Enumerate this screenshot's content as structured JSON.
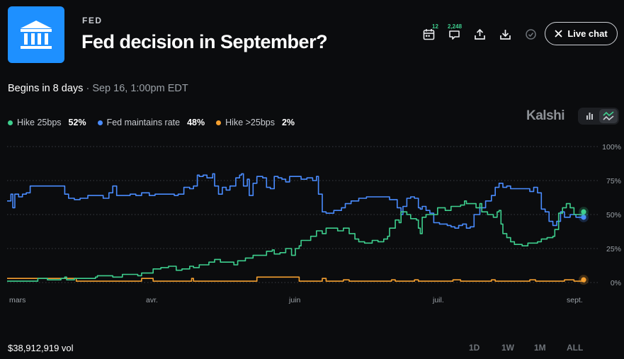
{
  "header": {
    "category": "FED",
    "title": "Fed decision in September?"
  },
  "toolbar": {
    "calendar_count": "12",
    "comments_count": "2,248",
    "live_chat_label": "Live chat"
  },
  "schedule": {
    "begins": "Begins in 8 days",
    "separator": "·",
    "datetime": "Sep 16, 1:00pm EDT"
  },
  "brand": "Kalshi",
  "footer": {
    "volume": "$38,912,919 vol",
    "range_1d": "1D",
    "range_1w": "1W",
    "range_1m": "1M",
    "range_all": "ALL"
  },
  "colors": {
    "hike25": "#3ecf8e",
    "maintain": "#4a8cff",
    "hike_gt25": "#f5a030"
  },
  "chart_data": {
    "type": "line",
    "x_ticks": [
      "mars",
      "avr.",
      "juin",
      "juil.",
      "sept."
    ],
    "y_ticks": [
      "100%",
      "75%",
      "50%",
      "25%",
      "0%"
    ],
    "ylim": [
      0,
      100
    ],
    "grid": true,
    "legend_position": "top-left",
    "series": [
      {
        "name": "Hike 25bps",
        "label": "52%",
        "color": "#3ecf8e",
        "points": [
          [
            0,
            1
          ],
          [
            15,
            1
          ],
          [
            16,
            3
          ],
          [
            20,
            3
          ],
          [
            21,
            2
          ],
          [
            26,
            2
          ],
          [
            28,
            3
          ],
          [
            30,
            4
          ],
          [
            31,
            2
          ],
          [
            35,
            3
          ],
          [
            42,
            3
          ],
          [
            46,
            4
          ],
          [
            47,
            5
          ],
          [
            54,
            5
          ],
          [
            55,
            4
          ],
          [
            58,
            4
          ],
          [
            60,
            6
          ],
          [
            66,
            6
          ],
          [
            68,
            5
          ],
          [
            70,
            7
          ],
          [
            74,
            7
          ],
          [
            76,
            10
          ],
          [
            80,
            11
          ],
          [
            84,
            12
          ],
          [
            87,
            12
          ],
          [
            88,
            9
          ],
          [
            91,
            10
          ],
          [
            95,
            12
          ],
          [
            97,
            11
          ],
          [
            100,
            13
          ],
          [
            103,
            13
          ],
          [
            105,
            15
          ],
          [
            108,
            17
          ],
          [
            111,
            15
          ],
          [
            116,
            15
          ],
          [
            118,
            13
          ],
          [
            120,
            16
          ],
          [
            124,
            18
          ],
          [
            128,
            20
          ],
          [
            132,
            20
          ],
          [
            135,
            23
          ],
          [
            138,
            24
          ],
          [
            139,
            21
          ],
          [
            142,
            22
          ],
          [
            145,
            25
          ],
          [
            147,
            25
          ],
          [
            148,
            20
          ],
          [
            150,
            25
          ],
          [
            152,
            27
          ],
          [
            153,
            31
          ],
          [
            156,
            31
          ],
          [
            158,
            34
          ],
          [
            160,
            34
          ],
          [
            161,
            38
          ],
          [
            163,
            38
          ],
          [
            164,
            36
          ],
          [
            166,
            40
          ],
          [
            170,
            40
          ],
          [
            172,
            38
          ],
          [
            175,
            40
          ],
          [
            178,
            36
          ],
          [
            181,
            32
          ],
          [
            183,
            30
          ],
          [
            186,
            29
          ],
          [
            190,
            31
          ],
          [
            193,
            30
          ],
          [
            196,
            32
          ],
          [
            198,
            34
          ],
          [
            199,
            40
          ],
          [
            202,
            46
          ],
          [
            204,
            44
          ],
          [
            205,
            52
          ],
          [
            208,
            50
          ],
          [
            210,
            47
          ],
          [
            213,
            46
          ],
          [
            214,
            40
          ],
          [
            215,
            36
          ],
          [
            216,
            48
          ],
          [
            218,
            50
          ],
          [
            222,
            50
          ],
          [
            224,
            55
          ],
          [
            228,
            53
          ],
          [
            231,
            56
          ],
          [
            234,
            56
          ],
          [
            236,
            57
          ],
          [
            238,
            60
          ],
          [
            239,
            58
          ],
          [
            242,
            58
          ],
          [
            244,
            55
          ],
          [
            246,
            58
          ],
          [
            247,
            52
          ],
          [
            250,
            50
          ],
          [
            253,
            48
          ],
          [
            255,
            52
          ],
          [
            256,
            53
          ],
          [
            257,
            43
          ],
          [
            258,
            36
          ],
          [
            260,
            33
          ],
          [
            262,
            30
          ],
          [
            264,
            28
          ],
          [
            268,
            27
          ],
          [
            271,
            29
          ],
          [
            274,
            29
          ],
          [
            276,
            30
          ],
          [
            278,
            32
          ],
          [
            281,
            33
          ],
          [
            284,
            34
          ],
          [
            285,
            39
          ],
          [
            287,
            51
          ],
          [
            289,
            55
          ],
          [
            291,
            58
          ],
          [
            293,
            55
          ],
          [
            295,
            50
          ],
          [
            298,
            50
          ],
          [
            300,
            52
          ]
        ]
      },
      {
        "name": "Fed maintains rate",
        "label": "48%",
        "color": "#4a8cff",
        "points": [
          [
            0,
            60
          ],
          [
            2,
            65
          ],
          [
            3,
            55
          ],
          [
            4,
            65
          ],
          [
            6,
            63
          ],
          [
            8,
            65
          ],
          [
            10,
            66
          ],
          [
            12,
            71
          ],
          [
            28,
            71
          ],
          [
            30,
            65
          ],
          [
            32,
            62
          ],
          [
            35,
            61
          ],
          [
            38,
            62
          ],
          [
            42,
            64
          ],
          [
            46,
            64
          ],
          [
            50,
            62
          ],
          [
            53,
            66
          ],
          [
            55,
            71
          ],
          [
            57,
            64
          ],
          [
            60,
            64
          ],
          [
            64,
            65
          ],
          [
            67,
            64
          ],
          [
            70,
            66
          ],
          [
            74,
            64
          ],
          [
            77,
            65
          ],
          [
            83,
            65
          ],
          [
            87,
            64
          ],
          [
            89,
            65
          ],
          [
            92,
            70
          ],
          [
            95,
            69
          ],
          [
            97,
            71
          ],
          [
            99,
            79
          ],
          [
            100,
            78
          ],
          [
            102,
            79
          ],
          [
            104,
            77
          ],
          [
            107,
            80
          ],
          [
            108,
            71
          ],
          [
            110,
            65
          ],
          [
            112,
            70
          ],
          [
            114,
            68
          ],
          [
            116,
            71
          ],
          [
            119,
            77
          ],
          [
            121,
            79
          ],
          [
            122,
            80
          ],
          [
            123,
            71
          ],
          [
            125,
            76
          ],
          [
            126,
            64
          ],
          [
            128,
            73
          ],
          [
            130,
            78
          ],
          [
            133,
            77
          ],
          [
            135,
            70
          ],
          [
            137,
            69
          ],
          [
            139,
            78
          ],
          [
            141,
            77
          ],
          [
            143,
            76
          ],
          [
            145,
            74
          ],
          [
            147,
            78
          ],
          [
            150,
            78
          ],
          [
            153,
            76
          ],
          [
            156,
            77
          ],
          [
            159,
            75
          ],
          [
            161,
            78
          ],
          [
            162,
            65
          ],
          [
            164,
            52
          ],
          [
            166,
            51
          ],
          [
            170,
            53
          ],
          [
            174,
            55
          ],
          [
            176,
            58
          ],
          [
            179,
            60
          ],
          [
            183,
            62
          ],
          [
            187,
            63
          ],
          [
            191,
            63
          ],
          [
            194,
            63
          ],
          [
            196,
            63
          ],
          [
            199,
            61
          ],
          [
            201,
            61
          ],
          [
            203,
            55
          ],
          [
            205,
            50
          ],
          [
            206,
            56
          ],
          [
            208,
            62
          ],
          [
            210,
            63
          ],
          [
            212,
            62
          ],
          [
            214,
            55
          ],
          [
            215,
            54
          ],
          [
            216,
            56
          ],
          [
            218,
            53
          ],
          [
            220,
            51
          ],
          [
            222,
            44
          ],
          [
            225,
            43
          ],
          [
            229,
            42
          ],
          [
            231,
            41
          ],
          [
            233,
            40
          ],
          [
            235,
            42
          ],
          [
            237,
            43
          ],
          [
            239,
            40
          ],
          [
            241,
            41
          ],
          [
            243,
            50
          ],
          [
            246,
            55
          ],
          [
            249,
            60
          ],
          [
            252,
            64
          ],
          [
            254,
            70
          ],
          [
            256,
            73
          ],
          [
            258,
            70
          ],
          [
            260,
            71
          ],
          [
            262,
            69
          ],
          [
            268,
            69
          ],
          [
            272,
            67
          ],
          [
            274,
            70
          ],
          [
            276,
            66
          ],
          [
            278,
            54
          ],
          [
            280,
            52
          ],
          [
            282,
            45
          ],
          [
            284,
            42
          ],
          [
            286,
            45
          ],
          [
            288,
            52
          ],
          [
            290,
            48
          ],
          [
            293,
            50
          ],
          [
            296,
            48
          ],
          [
            300,
            48
          ]
        ]
      },
      {
        "name": "Hike >25bps",
        "label": "2%",
        "color": "#f5a030",
        "points": [
          [
            0,
            3
          ],
          [
            34,
            3
          ],
          [
            36,
            1
          ],
          [
            68,
            1
          ],
          [
            70,
            3
          ],
          [
            76,
            1
          ],
          [
            95,
            1
          ],
          [
            96,
            3
          ],
          [
            97,
            1
          ],
          [
            128,
            1
          ],
          [
            130,
            4
          ],
          [
            150,
            4
          ],
          [
            152,
            1
          ],
          [
            162,
            1
          ],
          [
            164,
            3
          ],
          [
            166,
            1
          ],
          [
            173,
            1
          ],
          [
            175,
            2
          ],
          [
            178,
            1
          ],
          [
            198,
            1
          ],
          [
            200,
            2
          ],
          [
            202,
            1
          ],
          [
            210,
            1
          ],
          [
            212,
            2
          ],
          [
            214,
            1
          ],
          [
            230,
            1
          ],
          [
            232,
            2
          ],
          [
            236,
            1
          ],
          [
            250,
            1
          ],
          [
            252,
            2
          ],
          [
            254,
            1
          ],
          [
            270,
            1
          ],
          [
            272,
            2
          ],
          [
            275,
            1
          ],
          [
            288,
            1
          ],
          [
            290,
            2
          ],
          [
            295,
            1
          ],
          [
            300,
            2
          ]
        ]
      }
    ]
  }
}
